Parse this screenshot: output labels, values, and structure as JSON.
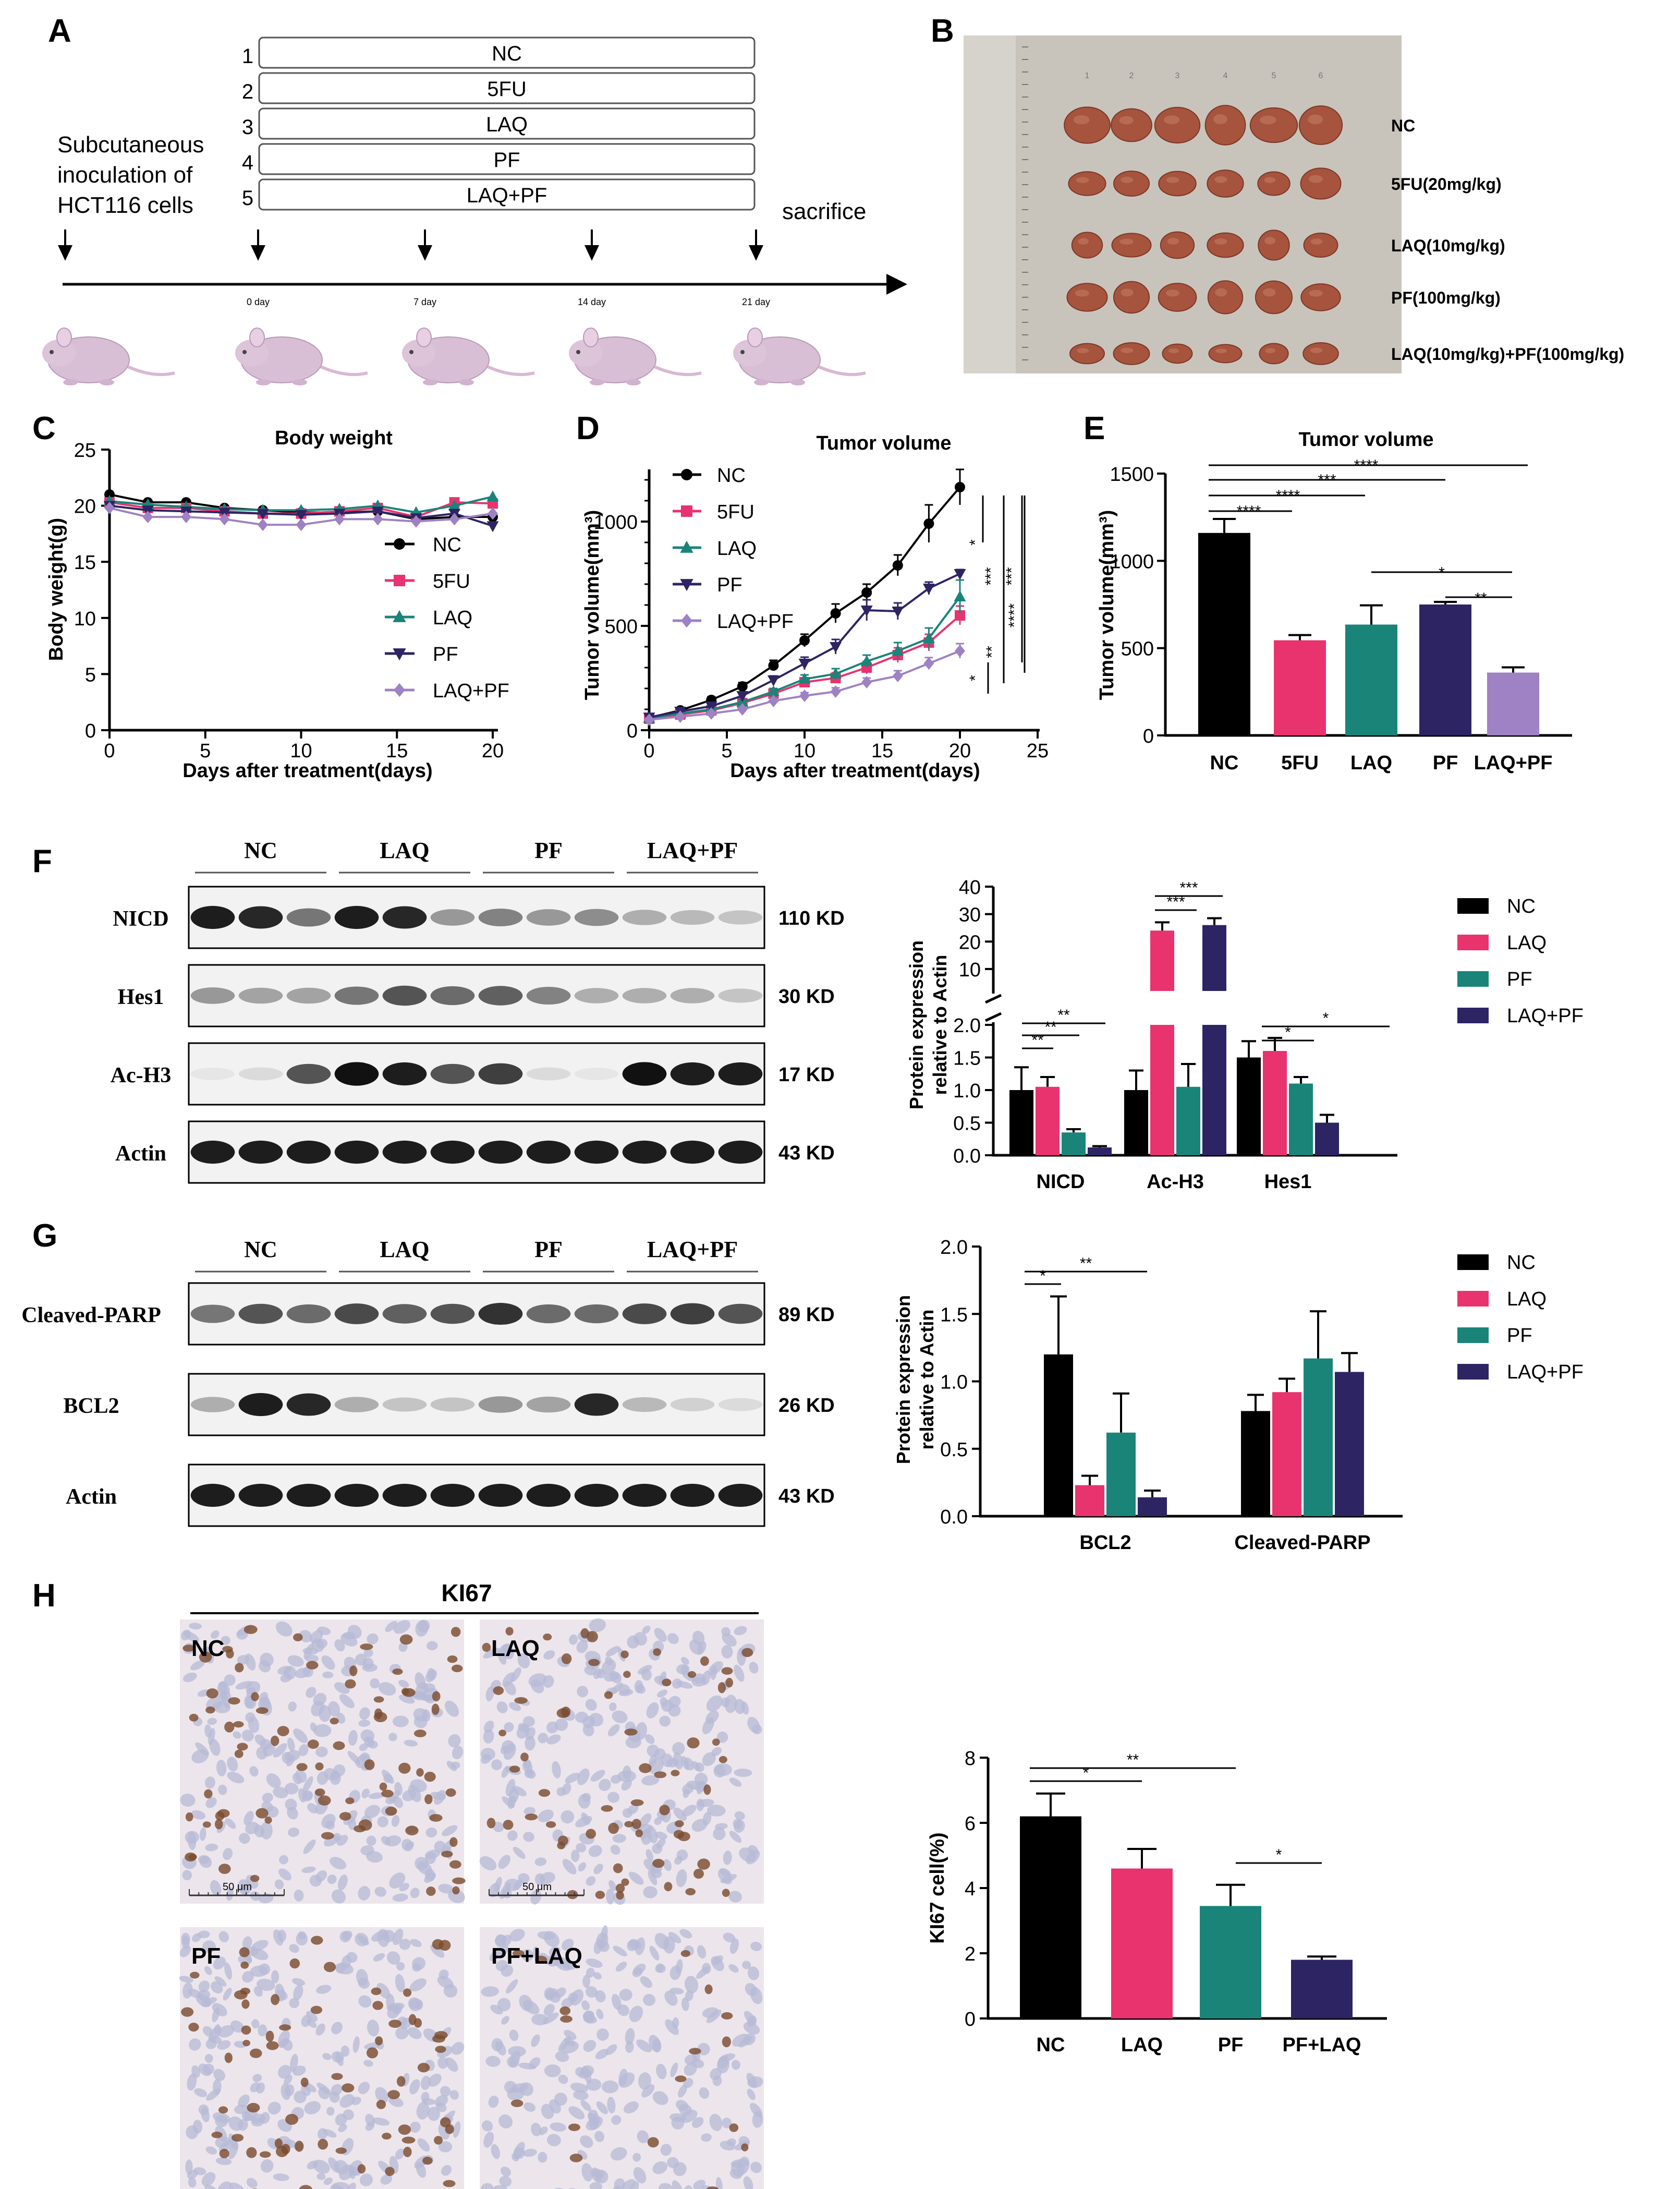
{
  "colors": {
    "nc": "#000000",
    "fu": "#e8336e",
    "laq": "#1a8479",
    "pf": "#2d2464",
    "laqpf": "#9e82c3",
    "photo": "#c8c4bc",
    "tumor": "#a6543e",
    "tissue": "#ece6ec"
  },
  "panels": {
    "A": "A",
    "B": "B",
    "C": "C",
    "D": "D",
    "E": "E",
    "F": "F",
    "G": "G",
    "H": "H"
  },
  "panelA": {
    "groups": [
      "NC",
      "5FU",
      "LAQ",
      "PF",
      "LAQ+PF"
    ],
    "group_numbers": [
      "1",
      "2",
      "3",
      "4",
      "5"
    ],
    "inoculation": [
      "Subcutaneous",
      "inoculation of",
      "HCT116 cells"
    ],
    "sacrifice": "sacrifice",
    "days": [
      "0 day",
      "7 day",
      "14 day",
      "21 day"
    ]
  },
  "panelB": {
    "rows": [
      "NC",
      "5FU(20mg/kg)",
      "LAQ(10mg/kg)",
      "PF(100mg/kg)",
      "LAQ(10mg/kg)+PF(100mg/kg)"
    ],
    "col_marks": [
      "1",
      "2",
      "3",
      "4",
      "5",
      "6"
    ]
  },
  "panelF": {
    "groups": [
      "NC",
      "LAQ",
      "PF",
      "LAQ+PF"
    ],
    "blots": [
      {
        "name": "NICD",
        "kd": "110 KD",
        "levels": [
          0.95,
          0.9,
          0.55,
          0.95,
          0.9,
          0.4,
          0.5,
          0.4,
          0.45,
          0.3,
          0.25,
          0.2
        ]
      },
      {
        "name": "Hes1",
        "kd": "30 KD",
        "levels": [
          0.4,
          0.35,
          0.35,
          0.55,
          0.7,
          0.6,
          0.65,
          0.5,
          0.3,
          0.3,
          0.3,
          0.2
        ]
      },
      {
        "name": "Ac-H3",
        "kd": "17 KD",
        "levels": [
          0.05,
          0.1,
          0.7,
          1,
          0.95,
          0.7,
          0.8,
          0.1,
          0.05,
          1,
          0.95,
          0.95
        ]
      },
      {
        "name": "Actin",
        "kd": "43 KD",
        "levels": [
          0.95,
          0.95,
          0.95,
          0.95,
          0.95,
          0.95,
          0.95,
          0.95,
          0.95,
          0.95,
          0.95,
          0.95
        ]
      }
    ]
  },
  "panelG": {
    "groups": [
      "NC",
      "LAQ",
      "PF",
      "LAQ+PF"
    ],
    "blots": [
      {
        "name": "Cleaved-PARP",
        "kd": "89 KD",
        "levels": [
          0.55,
          0.7,
          0.6,
          0.75,
          0.65,
          0.7,
          0.85,
          0.6,
          0.6,
          0.75,
          0.8,
          0.7
        ]
      },
      {
        "name": "BCL2",
        "kd": "26 KD",
        "levels": [
          0.3,
          0.95,
          0.9,
          0.3,
          0.2,
          0.2,
          0.4,
          0.35,
          0.9,
          0.25,
          0.15,
          0.1
        ]
      },
      {
        "name": "Actin",
        "kd": "43 KD",
        "levels": [
          0.95,
          0.95,
          0.95,
          0.95,
          0.95,
          0.95,
          0.95,
          0.95,
          0.95,
          0.95,
          0.95,
          0.95
        ]
      }
    ]
  },
  "panelH": {
    "title": "KI67",
    "images": [
      {
        "label": "NC",
        "density": 0.55
      },
      {
        "label": "LAQ",
        "density": 0.45
      },
      {
        "label": "PF",
        "density": 0.5
      },
      {
        "label": "PF+LAQ",
        "density": 0.12
      }
    ],
    "scale_label": "50 μm"
  },
  "chart_data": [
    {
      "id": "C",
      "type": "line",
      "title": "Body weight",
      "xlabel": "Days after treatment(days)",
      "ylabel": "Body weight(g)",
      "xlim": [
        0,
        20
      ],
      "ylim": [
        0,
        25
      ],
      "xticks": [
        0,
        5,
        10,
        15,
        20
      ],
      "yticks": [
        0,
        5,
        10,
        15,
        20,
        25
      ],
      "x": [
        0,
        2,
        4,
        6,
        8,
        10,
        12,
        14,
        16,
        18,
        20
      ],
      "legend": [
        "NC",
        "5FU",
        "LAQ",
        "PF",
        "LAQ+PF"
      ],
      "series": [
        {
          "name": "NC",
          "marker": "circle",
          "values": [
            21,
            20.3,
            20.3,
            19.8,
            19.6,
            19.4,
            19.4,
            19.5,
            18.8,
            19,
            19
          ]
        },
        {
          "name": "5FU",
          "marker": "square",
          "values": [
            20.3,
            19.8,
            19.8,
            19.5,
            19.3,
            19.3,
            19.5,
            19.8,
            19,
            20.3,
            20.2
          ]
        },
        {
          "name": "LAQ",
          "marker": "triangle-up",
          "values": [
            20.4,
            20.1,
            19.9,
            19.7,
            19.6,
            19.6,
            19.7,
            20,
            19.4,
            20,
            20.8
          ]
        },
        {
          "name": "PF",
          "marker": "triangle-down",
          "values": [
            20,
            19.6,
            19.5,
            19.4,
            19.3,
            19.2,
            19.3,
            19.5,
            18.9,
            19.3,
            18.2
          ]
        },
        {
          "name": "LAQ+PF",
          "marker": "diamond",
          "values": [
            19.8,
            19,
            19,
            18.8,
            18.3,
            18.3,
            18.8,
            18.8,
            18.6,
            18.8,
            19.3
          ]
        }
      ]
    },
    {
      "id": "D",
      "type": "line",
      "title": "Tumor volume",
      "xlabel": "Days after treatment(days)",
      "ylabel": "Tumor volume(mm³)",
      "xlim": [
        0,
        25
      ],
      "ylim": [
        0,
        1250
      ],
      "xticks": [
        0,
        5,
        10,
        15,
        20,
        25
      ],
      "yticks": [
        0,
        500,
        1000
      ],
      "x": [
        0,
        2,
        4,
        6,
        8,
        10,
        12,
        14,
        16,
        18,
        20
      ],
      "legend": [
        "NC",
        "5FU",
        "LAQ",
        "PF",
        "LAQ+PF"
      ],
      "series": [
        {
          "name": "NC",
          "marker": "circle",
          "values": [
            60,
            95,
            145,
            210,
            310,
            430,
            560,
            660,
            790,
            990,
            1165
          ],
          "errors": [
            8,
            12,
            15,
            18,
            25,
            30,
            45,
            40,
            50,
            90,
            85
          ]
        },
        {
          "name": "5FU",
          "marker": "square",
          "values": [
            55,
            75,
            95,
            130,
            175,
            230,
            250,
            300,
            360,
            420,
            550
          ],
          "errors": [
            5,
            8,
            10,
            12,
            15,
            20,
            25,
            30,
            35,
            40,
            45
          ]
        },
        {
          "name": "LAQ",
          "marker": "triangle-up",
          "values": [
            58,
            80,
            100,
            135,
            185,
            245,
            270,
            330,
            380,
            440,
            640
          ],
          "errors": [
            5,
            8,
            10,
            12,
            15,
            20,
            25,
            30,
            40,
            50,
            80
          ]
        },
        {
          "name": "PF",
          "marker": "triangle-down",
          "values": [
            62,
            90,
            115,
            165,
            240,
            320,
            400,
            575,
            570,
            680,
            750
          ],
          "errors": [
            5,
            10,
            12,
            15,
            20,
            30,
            35,
            50,
            40,
            30,
            20
          ]
        },
        {
          "name": "LAQ+PF",
          "marker": "diamond",
          "values": [
            50,
            65,
            80,
            100,
            140,
            165,
            185,
            230,
            260,
            320,
            380
          ],
          "errors": [
            5,
            6,
            8,
            10,
            12,
            15,
            18,
            20,
            25,
            28,
            35
          ]
        }
      ],
      "annotations": [
        "*",
        "***",
        "***",
        "*",
        "**",
        "****"
      ]
    },
    {
      "id": "E",
      "type": "bar",
      "title": "Tumor volume",
      "ylabel": "Tumor volume(mm³)",
      "ylim": [
        0,
        1500
      ],
      "yticks": [
        0,
        500,
        1000,
        1500
      ],
      "categories": [
        "NC",
        "5FU",
        "LAQ",
        "PF",
        "LAQ+PF"
      ],
      "values": [
        1160,
        545,
        635,
        750,
        360
      ],
      "errors": [
        80,
        30,
        110,
        15,
        30
      ],
      "annotations": [
        "****",
        "****",
        "***",
        "****",
        "*",
        "**"
      ]
    },
    {
      "id": "F",
      "type": "bar",
      "ylabel": [
        "Protein expression",
        "relative to Actin"
      ],
      "categories": [
        "NICD",
        "Ac-H3",
        "Hes1"
      ],
      "legend": [
        "NC",
        "LAQ",
        "PF",
        "LAQ+PF"
      ],
      "ylim_lower": [
        0,
        2
      ],
      "ylim_upper": [
        2,
        40
      ],
      "yticks_lower": [
        "0.0",
        "0.5",
        "1.0",
        "1.5",
        "2.0"
      ],
      "yticks_upper": [
        "10",
        "20",
        "30",
        "40"
      ],
      "series": [
        {
          "name": "NC",
          "values": [
            1.0,
            1.0,
            1.5
          ],
          "errors": [
            0.35,
            0.3,
            0.25
          ]
        },
        {
          "name": "LAQ",
          "values": [
            1.05,
            24,
            1.6
          ],
          "errors": [
            0.15,
            3,
            0.2
          ]
        },
        {
          "name": "PF",
          "values": [
            0.35,
            1.05,
            1.1
          ],
          "errors": [
            0.05,
            0.35,
            0.1
          ]
        },
        {
          "name": "LAQ+PF",
          "values": [
            0.12,
            26,
            0.5
          ],
          "errors": [
            0.02,
            2.5,
            0.12
          ]
        }
      ],
      "annotations": [
        "**",
        "**",
        "**",
        "***",
        "***",
        "*",
        "*"
      ]
    },
    {
      "id": "G",
      "type": "bar",
      "ylabel": [
        "Protein expression",
        "relative to Actin"
      ],
      "categories": [
        "BCL2",
        "Cleaved-PARP"
      ],
      "legend": [
        "NC",
        "LAQ",
        "PF",
        "LAQ+PF"
      ],
      "ylim": [
        0,
        2
      ],
      "yticks": [
        "0.0",
        "0.5",
        "1.0",
        "1.5",
        "2.0"
      ],
      "series": [
        {
          "name": "NC",
          "values": [
            1.2,
            0.78
          ],
          "errors": [
            0.43,
            0.12
          ]
        },
        {
          "name": "LAQ",
          "values": [
            0.23,
            0.92
          ],
          "errors": [
            0.07,
            0.1
          ]
        },
        {
          "name": "PF",
          "values": [
            0.62,
            1.17
          ],
          "errors": [
            0.29,
            0.35
          ]
        },
        {
          "name": "LAQ+PF",
          "values": [
            0.14,
            1.07
          ],
          "errors": [
            0.05,
            0.14
          ]
        }
      ],
      "annotations": [
        "*",
        "**"
      ]
    },
    {
      "id": "H",
      "type": "bar",
      "ylabel": "KI67 cell(%)",
      "categories": [
        "NC",
        "LAQ",
        "PF",
        "PF+LAQ"
      ],
      "values": [
        6.2,
        4.6,
        3.45,
        1.8
      ],
      "errors": [
        0.7,
        0.6,
        0.65,
        0.1
      ],
      "ylim": [
        0,
        8
      ],
      "yticks": [
        0,
        2,
        4,
        6,
        8
      ],
      "annotations": [
        "*",
        "**",
        "*"
      ]
    }
  ]
}
